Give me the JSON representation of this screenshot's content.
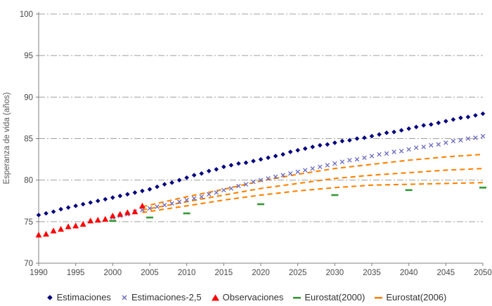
{
  "chart_data": {
    "type": "scatter",
    "title": "",
    "xlabel": "",
    "ylabel": "Esperanza de vida (años)",
    "xlim": [
      1990,
      2050
    ],
    "ylim": [
      70,
      100
    ],
    "x_ticks": [
      1990,
      1995,
      2000,
      2005,
      2010,
      2015,
      2020,
      2025,
      2030,
      2035,
      2040,
      2045,
      2050
    ],
    "y_ticks": [
      70,
      75,
      80,
      85,
      90,
      95,
      100
    ],
    "grid": "horizontal-dash-dot",
    "legend_position": "bottom",
    "colors": {
      "estimaciones": "#000080",
      "estimaciones25": "#6B6BBF",
      "observaciones": "#FF0000",
      "eurostat2000": "#339933",
      "eurostat2006": "#FF8200",
      "grid": "#A0A0A0",
      "axis": "#808080",
      "tick_text": "#4A4A4A"
    },
    "series": [
      {
        "name": "Estimaciones",
        "marker": "diamond",
        "color": "#000080",
        "x_start": 1990,
        "y": [
          75.8,
          76.0,
          76.2,
          76.5,
          76.7,
          76.9,
          77.1,
          77.3,
          77.5,
          77.7,
          77.9,
          78.1,
          78.3,
          78.5,
          78.7,
          78.9,
          79.2,
          79.5,
          79.7,
          80.0,
          80.3,
          80.6,
          80.8,
          81.1,
          81.3,
          81.6,
          81.8,
          82.0,
          82.1,
          82.3,
          82.5,
          82.7,
          82.9,
          83.1,
          83.4,
          83.6,
          83.8,
          84.0,
          84.2,
          84.3,
          84.5,
          84.7,
          84.8,
          85.0,
          85.1,
          85.3,
          85.5,
          85.7,
          85.8,
          86.0,
          86.2,
          86.4,
          86.6,
          86.7,
          86.9,
          87.1,
          87.3,
          87.5,
          87.6,
          87.8,
          88.0
        ]
      },
      {
        "name": "Estimaciones-2,5",
        "marker": "x",
        "color": "#6B6BBF",
        "x_start": 2000,
        "y": [
          75.5,
          75.7,
          75.9,
          76.2,
          76.4,
          76.6,
          76.8,
          77.0,
          77.2,
          77.4,
          77.6,
          77.8,
          78.0,
          78.3,
          78.5,
          78.8,
          79.0,
          79.3,
          79.5,
          79.8,
          80.0,
          80.2,
          80.4,
          80.6,
          80.8,
          81.0,
          81.2,
          81.4,
          81.6,
          81.8,
          82.0,
          82.2,
          82.4,
          82.5,
          82.7,
          82.9,
          83.1,
          83.2,
          83.4,
          83.5,
          83.7,
          83.9,
          84.0,
          84.2,
          84.3,
          84.5,
          84.7,
          84.8,
          85.0,
          85.1,
          85.3
        ]
      },
      {
        "name": "Observaciones",
        "marker": "triangle",
        "color": "#FF0000",
        "x_start": 1990,
        "y": [
          73.4,
          73.5,
          73.9,
          74.1,
          74.4,
          74.5,
          74.7,
          75.1,
          75.2,
          75.3,
          75.7,
          75.9,
          76.1,
          76.2,
          76.9
        ]
      },
      {
        "name": "Eurostat(2000)",
        "marker": "dash",
        "color": "#339933",
        "x": [
          2000,
          2005,
          2010,
          2020,
          2030,
          2040,
          2050
        ],
        "y": [
          75.1,
          75.5,
          76.0,
          77.1,
          78.2,
          78.8,
          79.1
        ]
      },
      {
        "name": "Eurostat(2006)",
        "marker": "dashed-line",
        "color": "#FF8200",
        "lines": [
          {
            "x": [
              2004,
              2010,
              2015,
              2020,
              2025,
              2030,
              2035,
              2040,
              2045,
              2050
            ],
            "y": [
              76.8,
              78.0,
              78.9,
              79.9,
              80.7,
              81.4,
              81.9,
              82.4,
              82.8,
              83.1
            ]
          },
          {
            "x": [
              2004,
              2010,
              2015,
              2020,
              2025,
              2030,
              2035,
              2040,
              2045,
              2050
            ],
            "y": [
              76.4,
              77.4,
              78.2,
              79.0,
              79.6,
              80.2,
              80.6,
              80.9,
              81.2,
              81.4
            ]
          },
          {
            "x": [
              2004,
              2010,
              2015,
              2020,
              2025,
              2030,
              2035,
              2040,
              2045,
              2050
            ],
            "y": [
              76.1,
              76.9,
              77.6,
              78.2,
              78.7,
              79.1,
              79.4,
              79.5,
              79.6,
              79.7
            ]
          }
        ]
      }
    ]
  }
}
